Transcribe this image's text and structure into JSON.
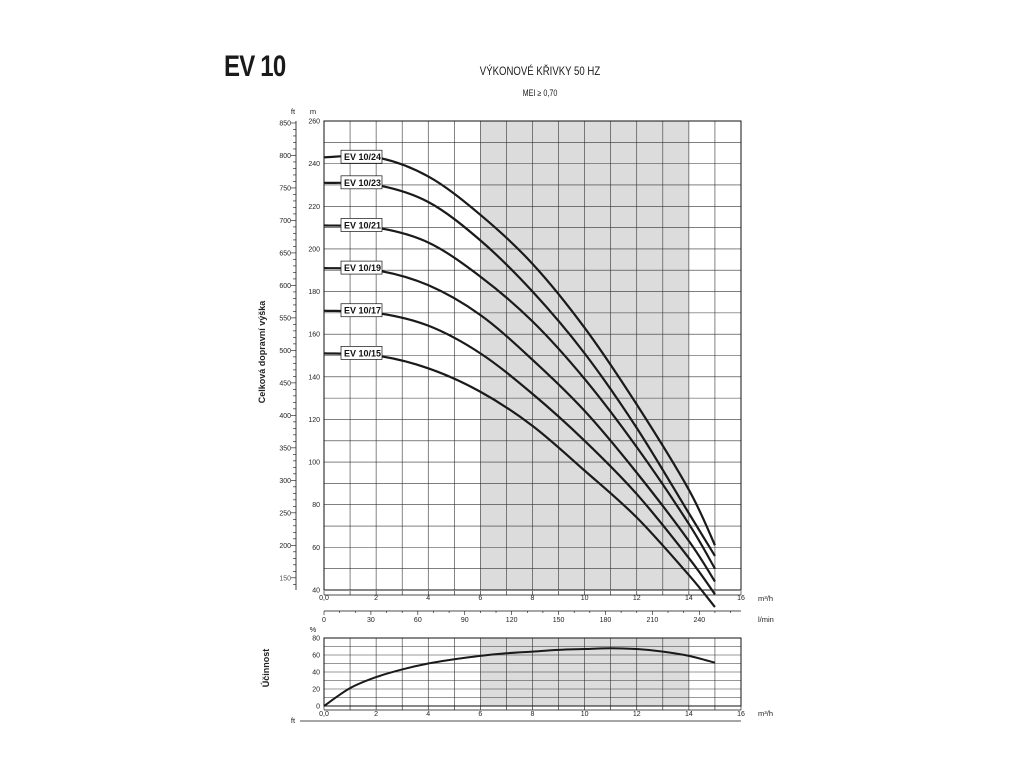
{
  "header": {
    "model": "EV 10",
    "title": "VÝKONOVÉ KŘIVKY 50 HZ",
    "subtitle": "MEI ≥ 0,70"
  },
  "chart_data": [
    {
      "type": "line",
      "title": "VÝKONOVÉ KŘIVKY 50 HZ",
      "subtitle": "MEI ≥ 0,70",
      "ylabel": "Celková dopravní výška",
      "yunit_left": "ft",
      "yunit_right": "m",
      "xunit": "m³/h",
      "xunit_secondary": "l/min",
      "xlim": [
        0,
        16
      ],
      "ylim": [
        40,
        260
      ],
      "x_ticks": [
        0,
        2,
        4,
        6,
        8,
        10,
        12,
        14,
        16
      ],
      "x_tick_labels": [
        "0,0",
        "2",
        "4",
        "6",
        "8",
        "10",
        "12",
        "14",
        "16"
      ],
      "y_ticks": [
        40,
        60,
        80,
        100,
        120,
        140,
        160,
        180,
        200,
        220,
        240,
        260
      ],
      "ft_ticks": [
        150,
        200,
        250,
        300,
        350,
        400,
        450,
        500,
        550,
        600,
        650,
        700,
        750,
        800,
        850
      ],
      "lmin_ticks": [
        0,
        30,
        60,
        90,
        120,
        150,
        180,
        210,
        240
      ],
      "shaded_range": [
        6,
        14
      ],
      "grid": true,
      "series": [
        {
          "name": "EV 10/24",
          "x": [
            0,
            2,
            4,
            6,
            8,
            10,
            12,
            14,
            15
          ],
          "values": [
            243,
            243,
            234,
            216,
            193,
            163,
            127,
            87,
            61
          ]
        },
        {
          "name": "EV 10/23",
          "x": [
            0,
            2,
            4,
            6,
            8,
            10,
            12,
            14,
            15
          ],
          "values": [
            231,
            230,
            222,
            204,
            180,
            151,
            116,
            76,
            56
          ]
        },
        {
          "name": "EV 10/21",
          "x": [
            0,
            2,
            4,
            6,
            8,
            10,
            12,
            14,
            15
          ],
          "values": [
            211,
            210,
            203,
            187,
            166,
            139,
            107,
            71,
            50
          ]
        },
        {
          "name": "EV 10/19",
          "x": [
            0,
            2,
            4,
            6,
            8,
            10,
            12,
            14,
            15
          ],
          "values": [
            191,
            190,
            183,
            169,
            148,
            124,
            95,
            63,
            44
          ]
        },
        {
          "name": "EV 10/17",
          "x": [
            0,
            2,
            4,
            6,
            8,
            10,
            12,
            14,
            15
          ],
          "values": [
            171,
            170,
            164,
            151,
            132,
            110,
            85,
            55,
            38
          ]
        },
        {
          "name": "EV 10/15",
          "x": [
            0,
            2,
            4,
            6,
            8,
            10,
            12,
            14,
            15
          ],
          "values": [
            151,
            150,
            144,
            133,
            117,
            96,
            74,
            47,
            32
          ]
        }
      ]
    },
    {
      "type": "line",
      "ylabel": "Účinnost",
      "yunit": "%",
      "xunit": "m³/h",
      "xunit_left": "ft",
      "xlim": [
        0,
        16
      ],
      "ylim": [
        0,
        80
      ],
      "x_ticks": [
        0,
        2,
        4,
        6,
        8,
        10,
        12,
        14,
        16
      ],
      "x_tick_labels": [
        "0,0",
        "2",
        "4",
        "6",
        "8",
        "10",
        "12",
        "14",
        "16"
      ],
      "y_ticks": [
        0,
        20,
        40,
        60,
        80
      ],
      "shaded_range": [
        6,
        14
      ],
      "grid": true,
      "series": [
        {
          "x": [
            0,
            1,
            2,
            3,
            4,
            5,
            6,
            7,
            8,
            9,
            10,
            11,
            12,
            13,
            14,
            15
          ],
          "values": [
            0,
            21,
            34,
            43,
            50,
            55,
            59,
            62,
            64,
            66,
            67,
            68,
            67,
            64,
            59,
            51
          ]
        }
      ]
    }
  ]
}
